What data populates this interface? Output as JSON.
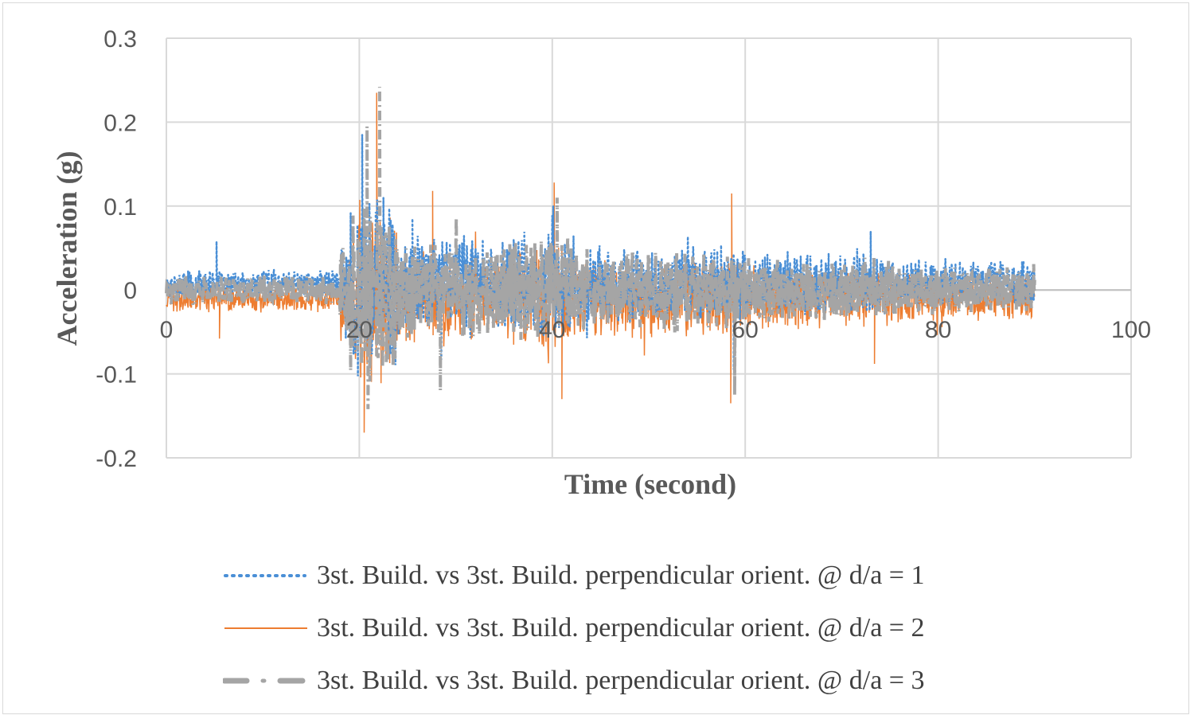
{
  "chart_data": {
    "type": "line",
    "title": "",
    "xlabel": "Time (second)",
    "ylabel": "Acceleration (g)",
    "xlim": [
      0,
      100
    ],
    "ylim": [
      -0.2,
      0.3
    ],
    "x_ticks": [
      "0",
      "20",
      "40",
      "60",
      "80",
      "100"
    ],
    "y_ticks": [
      "0.3",
      "0.2",
      "0.1",
      "0",
      "-0.1",
      "-0.2"
    ],
    "grid": true,
    "legend_position": "bottom",
    "data_range_x": [
      0,
      90
    ],
    "series": [
      {
        "name": "3st. Build. vs 3st. Build. perpendicular orient. @ d/a = 1",
        "color": "#4a8fd6",
        "style": "dotted",
        "peaks": [
          {
            "t": 5.2,
            "value": 0.058
          },
          {
            "t": 18.6,
            "value": -0.057
          },
          {
            "t": 20.3,
            "value": 0.185
          },
          {
            "t": 22.5,
            "value": 0.11
          },
          {
            "t": 25.5,
            "value": 0.085
          },
          {
            "t": 28.5,
            "value": -0.083
          },
          {
            "t": 40.1,
            "value": 0.1
          },
          {
            "t": 58.8,
            "value": -0.095
          },
          {
            "t": 73.0,
            "value": 0.07
          }
        ]
      },
      {
        "name": "3st. Build. vs 3st. Build. perpendicular orient. @ d/a = 2",
        "color": "#ed7d31",
        "style": "solid",
        "peaks": [
          {
            "t": 5.5,
            "value": -0.058
          },
          {
            "t": 20.5,
            "value": -0.17
          },
          {
            "t": 21.8,
            "value": 0.235
          },
          {
            "t": 27.6,
            "value": 0.118
          },
          {
            "t": 40.2,
            "value": 0.128
          },
          {
            "t": 41.0,
            "value": -0.13
          },
          {
            "t": 58.6,
            "value": 0.115
          },
          {
            "t": 58.5,
            "value": -0.135
          },
          {
            "t": 73.4,
            "value": -0.088
          }
        ]
      },
      {
        "name": "3st. Build. vs 3st. Build. perpendicular orient. @ d/a = 3",
        "color": "#a5a5a5",
        "style": "dash-dot",
        "peaks": [
          {
            "t": 20.8,
            "value": 0.195
          },
          {
            "t": 22.1,
            "value": 0.242
          },
          {
            "t": 20.9,
            "value": -0.142
          },
          {
            "t": 28.4,
            "value": -0.12
          },
          {
            "t": 40.5,
            "value": 0.11
          },
          {
            "t": 58.9,
            "value": -0.125
          }
        ]
      }
    ]
  },
  "legend": {
    "items": [
      {
        "label": "3st. Build. vs 3st. Build. perpendicular orient. @ d/a = 1"
      },
      {
        "label": "3st. Build. vs 3st. Build. perpendicular orient. @ d/a = 2"
      },
      {
        "label": "3st. Build. vs 3st. Build. perpendicular orient. @ d/a = 3"
      }
    ]
  }
}
